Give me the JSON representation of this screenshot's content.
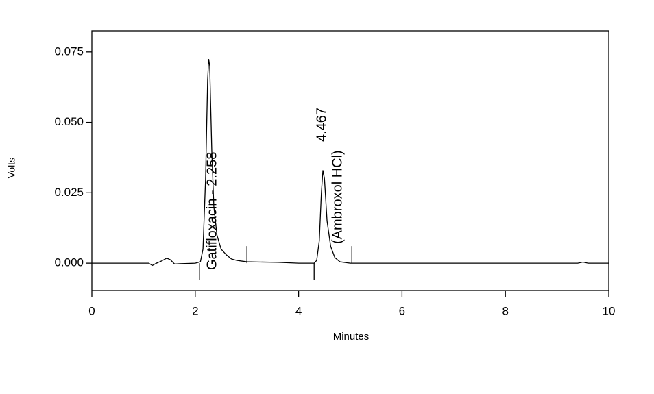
{
  "chart_data": {
    "type": "line",
    "x_label": "Minutes",
    "y_label": "Volts",
    "x": [
      0,
      1.1,
      1.17,
      1.25,
      1.35,
      1.45,
      1.52,
      1.6,
      1.7,
      2.0,
      2.1,
      2.15,
      2.2,
      2.24,
      2.26,
      2.28,
      2.32,
      2.36,
      2.42,
      2.5,
      2.6,
      2.7,
      2.8,
      3.0,
      3.6,
      4.0,
      4.3,
      4.35,
      4.4,
      4.44,
      4.47,
      4.5,
      4.55,
      4.62,
      4.7,
      4.8,
      5.0,
      9.4,
      9.5,
      9.6,
      10
    ],
    "series": [
      {
        "color": "#000000",
        "values": [
          0,
          0,
          -0.0008,
          0,
          0.0008,
          0.0018,
          0.0012,
          -0.0003,
          -0.0002,
          0,
          0.0005,
          0.005,
          0.03,
          0.065,
          0.0725,
          0.07,
          0.04,
          0.02,
          0.01,
          0.005,
          0.003,
          0.0015,
          0.001,
          0.0005,
          0.0003,
          0,
          0,
          0.001,
          0.008,
          0.025,
          0.033,
          0.03,
          0.015,
          0.006,
          0.002,
          0.0005,
          0,
          0,
          0.0004,
          0,
          0
        ]
      }
    ],
    "baseline_marks": [
      2.08,
      3.0,
      4.3,
      5.03
    ],
    "annotations": [
      "Gatifloxacin - 2.258",
      "4.467",
      "(Ambroxol HCl)"
    ],
    "xlim": [
      0,
      10
    ],
    "xticks": [
      0,
      2,
      4,
      6,
      8,
      10
    ],
    "ylim": [
      -0.0097,
      0.0825
    ],
    "yticks": [
      {
        "value": 0,
        "label": "0.000"
      },
      {
        "value": 0.025,
        "label": "0.025"
      },
      {
        "value": 0.05,
        "label": "0.050"
      },
      {
        "value": 0.075,
        "label": "0.075"
      }
    ]
  }
}
